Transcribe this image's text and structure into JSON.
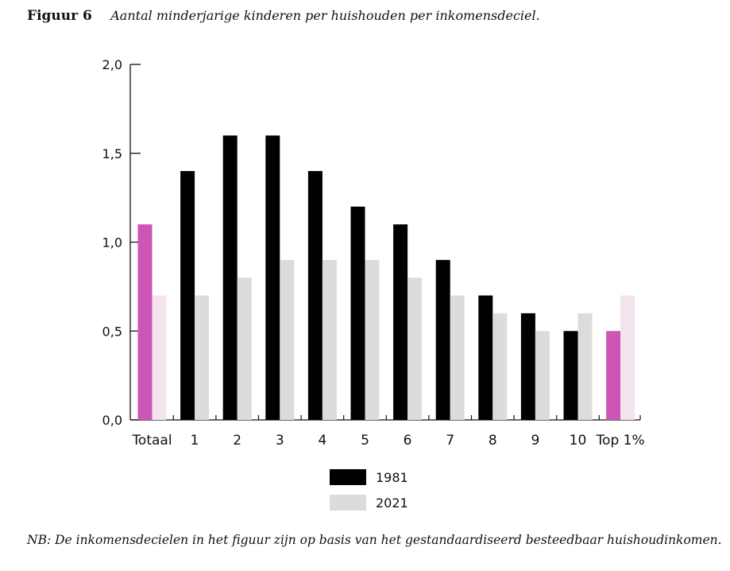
{
  "figure": {
    "label": "Figuur 6",
    "title": "Aantal minderjarige kinderen per huishouden per inkomensdeciel."
  },
  "note": "NB: De inkomensdecielen in het figuur zijn op basis van het gestandaardiseerd besteedbaar huishoudinkomen.",
  "colors": {
    "series_1981": "#000000",
    "series_2021": "#dcdcdc",
    "highlight_1981": "#cc55b5",
    "highlight_2021": "#f4e4ee",
    "axis": "#111111"
  },
  "chart_data": {
    "type": "bar",
    "title": "Aantal minderjarige kinderen per huishouden per inkomensdeciel.",
    "xlabel": "",
    "ylabel": "",
    "ylim": [
      0,
      2.0
    ],
    "yticks": [
      "0,0",
      "0,5",
      "1,0",
      "1,5",
      "2,0"
    ],
    "categories": [
      "Totaal",
      "1",
      "2",
      "3",
      "4",
      "5",
      "6",
      "7",
      "8",
      "9",
      "10",
      "Top 1%"
    ],
    "highlighted_categories": [
      "Totaal",
      "Top 1%"
    ],
    "series": [
      {
        "name": "1981",
        "values": [
          1.1,
          1.4,
          1.6,
          1.6,
          1.4,
          1.2,
          1.1,
          0.9,
          0.7,
          0.6,
          0.5,
          0.5
        ]
      },
      {
        "name": "2021",
        "values": [
          0.7,
          0.7,
          0.8,
          0.9,
          0.9,
          0.9,
          0.8,
          0.7,
          0.6,
          0.5,
          0.6,
          0.7
        ]
      }
    ],
    "legend_position": "bottom-center",
    "grid": false
  }
}
